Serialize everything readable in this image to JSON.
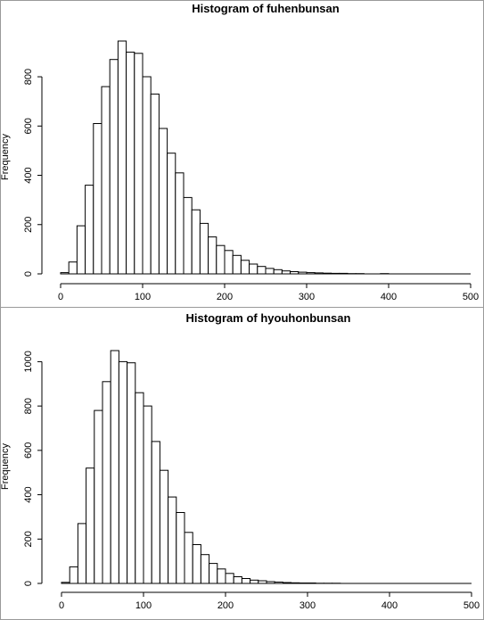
{
  "chart_data": [
    {
      "type": "bar",
      "title": "Histogram of fuhenbunsan",
      "xlabel": "",
      "ylabel": "Frequency",
      "bin_width": 10,
      "bin_start": 0,
      "values": [
        5,
        48,
        195,
        360,
        610,
        760,
        870,
        945,
        900,
        895,
        800,
        730,
        590,
        490,
        410,
        310,
        260,
        205,
        150,
        115,
        95,
        75,
        55,
        40,
        30,
        22,
        17,
        12,
        9,
        7,
        5,
        4,
        3,
        2,
        2,
        1,
        1,
        0,
        0,
        1
      ],
      "xlim": [
        0,
        500
      ],
      "xticks": [
        0,
        100,
        200,
        300,
        400,
        500
      ],
      "xtick_labels": [
        "0",
        "100",
        "200",
        "300",
        "400",
        "500"
      ],
      "yticks": [
        0,
        200,
        400,
        600,
        800
      ],
      "ytick_labels": [
        "0",
        "200",
        "400",
        "600",
        "800"
      ],
      "ylim": [
        0,
        945
      ]
    },
    {
      "type": "bar",
      "title": "Histogram of hyouhonbunsan",
      "xlabel": "",
      "ylabel": "Frequency",
      "bin_width": 10,
      "bin_start": 0,
      "values": [
        5,
        75,
        270,
        520,
        780,
        910,
        1050,
        1000,
        995,
        860,
        800,
        640,
        510,
        390,
        320,
        230,
        175,
        130,
        90,
        65,
        45,
        30,
        22,
        15,
        12,
        8,
        6,
        4,
        3,
        2,
        2,
        1,
        1,
        1
      ],
      "xlim": [
        0,
        500
      ],
      "xticks": [
        0,
        100,
        200,
        300,
        400,
        500
      ],
      "xtick_labels": [
        "0",
        "100",
        "200",
        "300",
        "400",
        "500"
      ],
      "yticks": [
        0,
        200,
        400,
        600,
        800,
        1000
      ],
      "ytick_labels": [
        "0",
        "200",
        "400",
        "600",
        "800",
        "1000"
      ],
      "ylim": [
        0,
        1050
      ]
    }
  ]
}
